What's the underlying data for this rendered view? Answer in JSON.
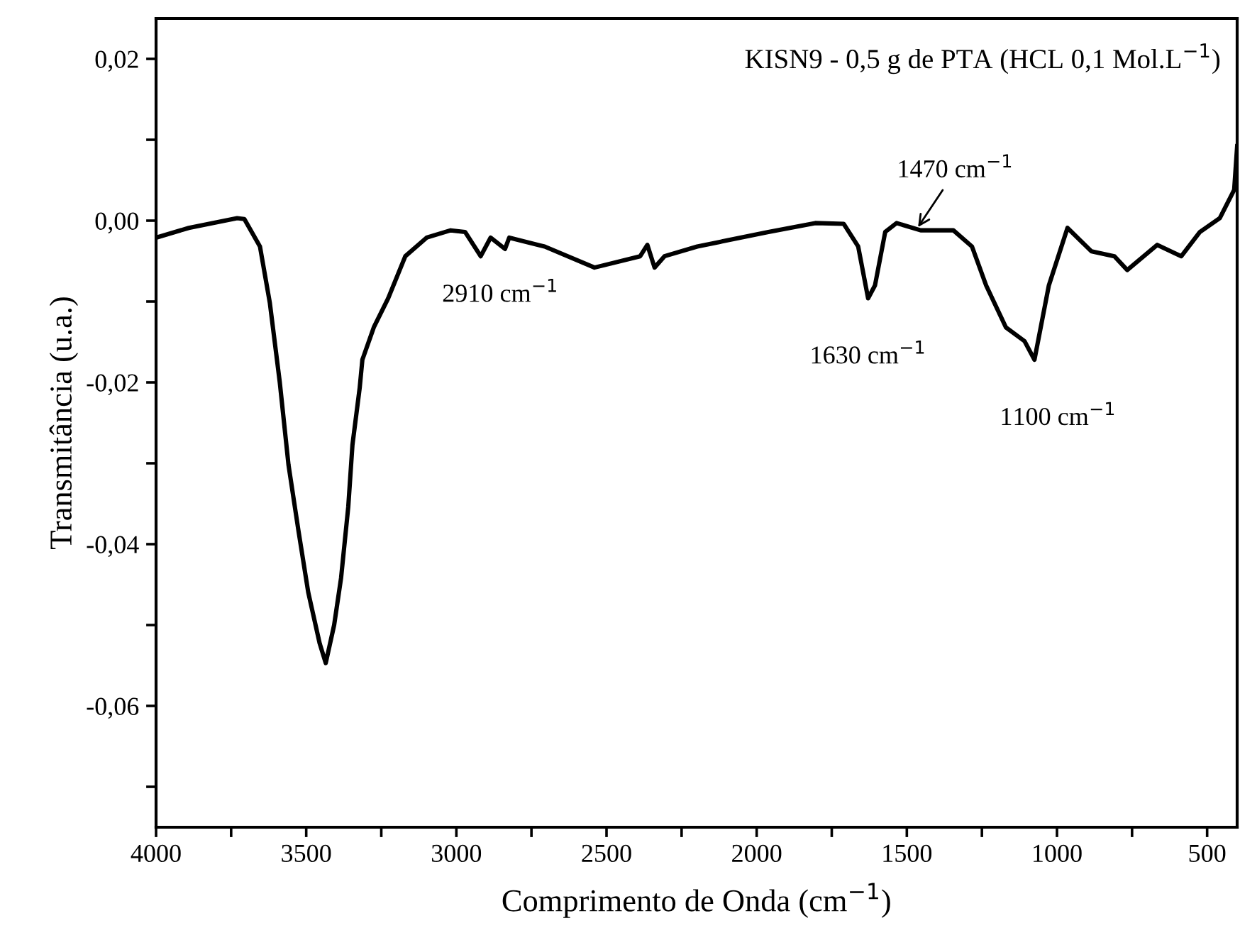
{
  "chart_data": {
    "type": "line",
    "title": "KISN9 - 0,5 g de PTA (HCL 0,1 Mol.L$^{−1}$)",
    "xlabel": "Comprimento de Onda (cm$^{−1}$)",
    "ylabel": "Transmitância (u.a.)",
    "x": [
      4000,
      3891,
      3730,
      3706,
      3654,
      3621,
      3588,
      3559,
      3526,
      3493,
      3455,
      3435,
      3407,
      3384,
      3360,
      3346,
      3322,
      3313,
      3275,
      3227,
      3170,
      3099,
      3019,
      2971,
      2919,
      2886,
      2838,
      2824,
      2706,
      2540,
      2388,
      2364,
      2340,
      2307,
      2198,
      1961,
      1805,
      1710,
      1662,
      1629,
      1606,
      1572,
      1534,
      1454,
      1345,
      1283,
      1236,
      1170,
      1108,
      1075,
      1027,
      965,
      885,
      809,
      766,
      666,
      586,
      524,
      458,
      410,
      400
    ],
    "series": [
      {
        "color": "#000000",
        "values": [
          -0.0021,
          -0.0009,
          0.0003,
          0.0002,
          -0.0032,
          -0.0102,
          -0.02,
          -0.0302,
          -0.0383,
          -0.046,
          -0.0523,
          -0.0547,
          -0.05,
          -0.0442,
          -0.0354,
          -0.0277,
          -0.0207,
          -0.0172,
          -0.0132,
          -0.0096,
          -0.0044,
          -0.0021,
          -0.0012,
          -0.0014,
          -0.0044,
          -0.0021,
          -0.0035,
          -0.0021,
          -0.0032,
          -0.0058,
          -0.0044,
          -0.003,
          -0.0058,
          -0.0044,
          -0.0032,
          -0.0014,
          -0.0003,
          -0.0004,
          -0.0032,
          -0.0096,
          -0.008,
          -0.0014,
          -0.0003,
          -0.0012,
          -0.0012,
          -0.0032,
          -0.008,
          -0.0132,
          -0.0149,
          -0.0172,
          -0.008,
          -0.0009,
          -0.0038,
          -0.0044,
          -0.0061,
          -0.003,
          -0.0044,
          -0.0014,
          0.0003,
          0.0038,
          0.0092
        ]
      }
    ],
    "xlim": [
      4000,
      400
    ],
    "ylim": [
      -0.075,
      0.025
    ],
    "xticks": [
      4000,
      {
        "value": 3750,
        "label": null
      },
      3500,
      {
        "value": 3250,
        "label": null
      },
      3000,
      {
        "value": 2750,
        "label": null
      },
      2500,
      {
        "value": 2250,
        "label": null
      },
      2000,
      {
        "value": 1750,
        "label": null
      },
      1500,
      {
        "value": 1250,
        "label": null
      },
      1000,
      {
        "value": 750,
        "label": null
      },
      500
    ],
    "yticks": [
      {
        "value": -0.07,
        "label": null
      },
      {
        "value": -0.06,
        "label": "-0,06"
      },
      {
        "value": -0.05,
        "label": null
      },
      {
        "value": -0.04,
        "label": "-0,04"
      },
      {
        "value": -0.03,
        "label": null
      },
      {
        "value": -0.02,
        "label": "-0,02"
      },
      {
        "value": -0.01,
        "label": null
      },
      {
        "value": 0,
        "label": "0,00"
      },
      {
        "value": 0.01,
        "label": null
      },
      {
        "value": 0.02,
        "label": "0,02"
      }
    ],
    "annotations": [
      {
        "text": "2910 cm$^{−1}$",
        "x": 2919,
        "y": -0.0044
      },
      {
        "text": "1630 cm$^{−1}$",
        "x": 1629,
        "y": -0.0096
      },
      {
        "text": "1470 cm$^{−1}$",
        "x": 1470,
        "y": -0.0012
      },
      {
        "text": "1100 cm$^{−1}$",
        "x": 1075,
        "y": -0.0172
      }
    ],
    "grid": false,
    "legend": false,
    "marker": "none",
    "line_style": "solid"
  }
}
